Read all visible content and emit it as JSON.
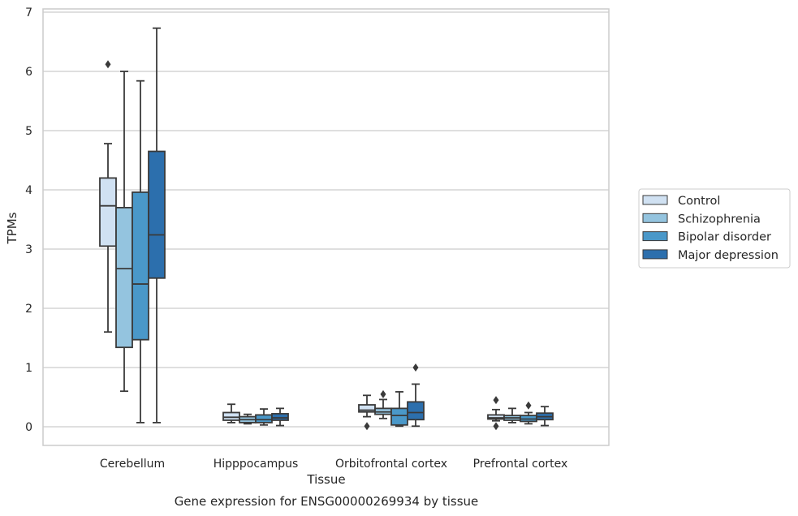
{
  "chart_data": {
    "type": "box",
    "xlabel": "Tissue",
    "ylabel": "TPMs",
    "caption": "Gene expression for ENSG00000269934 by tissue",
    "ylim": [
      -0.32,
      7.08
    ],
    "yticks": [
      "0",
      "1",
      "2",
      "3",
      "4",
      "5",
      "6",
      "7"
    ],
    "grid": "horizontal",
    "legend_position": "right",
    "categories": [
      "Cerebellum",
      "Hipppocampus",
      "Orbitofrontal cortex",
      "Prefrontal cortex"
    ],
    "series": [
      {
        "name": "Control",
        "color": "#d0e1f2",
        "boxes": [
          {
            "whislo": 1.6,
            "q1": 3.05,
            "med": 3.73,
            "q3": 4.2,
            "whishi": 4.78,
            "fliers": [
              6.12
            ]
          },
          {
            "whislo": 0.07,
            "q1": 0.11,
            "med": 0.16,
            "q3": 0.24,
            "whishi": 0.38,
            "fliers": []
          },
          {
            "whislo": 0.17,
            "q1": 0.25,
            "med": 0.28,
            "q3": 0.37,
            "whishi": 0.53,
            "fliers": [
              0.01
            ]
          },
          {
            "whislo": 0.1,
            "q1": 0.13,
            "med": 0.15,
            "q3": 0.2,
            "whishi": 0.29,
            "fliers": [
              0.45,
              0.01
            ]
          }
        ]
      },
      {
        "name": "Schizophrenia",
        "color": "#94c4df",
        "boxes": [
          {
            "whislo": 0.6,
            "q1": 1.34,
            "med": 2.67,
            "q3": 3.7,
            "whishi": 6.0,
            "fliers": []
          },
          {
            "whislo": 0.05,
            "q1": 0.07,
            "med": 0.12,
            "q3": 0.17,
            "whishi": 0.21,
            "fliers": []
          },
          {
            "whislo": 0.14,
            "q1": 0.21,
            "med": 0.25,
            "q3": 0.31,
            "whishi": 0.46,
            "fliers": [
              0.55
            ]
          },
          {
            "whislo": 0.07,
            "q1": 0.11,
            "med": 0.15,
            "q3": 0.19,
            "whishi": 0.31,
            "fliers": []
          }
        ]
      },
      {
        "name": "Bipolar disorder",
        "color": "#4a98c9",
        "boxes": [
          {
            "whislo": 0.07,
            "q1": 1.47,
            "med": 2.41,
            "q3": 3.96,
            "whishi": 5.84,
            "fliers": []
          },
          {
            "whislo": 0.03,
            "q1": 0.07,
            "med": 0.12,
            "q3": 0.2,
            "whishi": 0.3,
            "fliers": []
          },
          {
            "whislo": 0.01,
            "q1": 0.03,
            "med": 0.19,
            "q3": 0.31,
            "whishi": 0.59,
            "fliers": []
          },
          {
            "whislo": 0.05,
            "q1": 0.09,
            "med": 0.13,
            "q3": 0.19,
            "whishi": 0.24,
            "fliers": [
              0.36
            ]
          }
        ]
      },
      {
        "name": "Major depression",
        "color": "#2c6fad",
        "boxes": [
          {
            "whislo": 0.07,
            "q1": 2.51,
            "med": 3.24,
            "q3": 4.65,
            "whishi": 6.73,
            "fliers": []
          },
          {
            "whislo": 0.02,
            "q1": 0.11,
            "med": 0.15,
            "q3": 0.22,
            "whishi": 0.31,
            "fliers": []
          },
          {
            "whislo": 0.01,
            "q1": 0.12,
            "med": 0.24,
            "q3": 0.42,
            "whishi": 0.72,
            "fliers": [
              1.0
            ]
          },
          {
            "whislo": 0.02,
            "q1": 0.12,
            "med": 0.17,
            "q3": 0.23,
            "whishi": 0.34,
            "fliers": []
          }
        ]
      }
    ]
  }
}
